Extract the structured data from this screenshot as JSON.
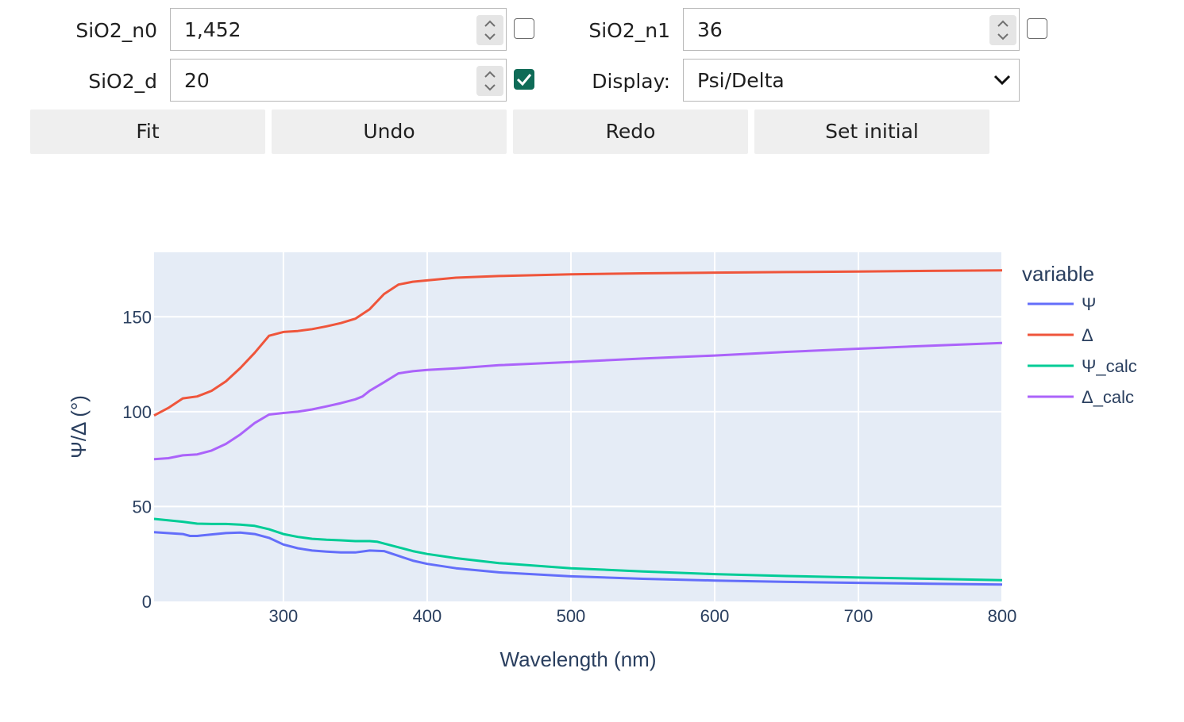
{
  "controls": {
    "sio2_n0": {
      "label": "SiO2_n0",
      "value": "1,452",
      "checked": false
    },
    "sio2_n1": {
      "label": "SiO2_n1",
      "value": "36",
      "checked": false
    },
    "sio2_d": {
      "label": "SiO2_d",
      "value": "20",
      "checked": true
    },
    "display": {
      "label": "Display:",
      "value": "Psi/Delta"
    }
  },
  "buttons": {
    "fit": "Fit",
    "undo": "Undo",
    "redo": "Redo",
    "set_initial": "Set initial"
  },
  "chart_data": {
    "type": "line",
    "xlabel": "Wavelength (nm)",
    "ylabel": "Ψ/Δ (°)",
    "xlim": [
      210,
      800
    ],
    "ylim": [
      0,
      184
    ],
    "xticks": [
      300,
      400,
      500,
      600,
      700,
      800
    ],
    "yticks": [
      0,
      50,
      100,
      150
    ],
    "grid": true,
    "legend_title": "variable",
    "legend_position": "right",
    "series": [
      {
        "name": "Ψ",
        "color": "#636efa",
        "x": [
          210,
          230,
          235,
          240,
          250,
          260,
          270,
          280,
          290,
          300,
          310,
          320,
          330,
          340,
          350,
          360,
          370,
          380,
          390,
          400,
          420,
          450,
          500,
          550,
          600,
          650,
          700,
          750,
          800
        ],
        "y": [
          36.5,
          35.5,
          34.5,
          34.5,
          35.3,
          36,
          36.3,
          35.5,
          33.5,
          30,
          28,
          26.8,
          26.2,
          25.8,
          25.8,
          26.8,
          26.5,
          24,
          21.5,
          19.8,
          17.5,
          15.3,
          13.2,
          11.9,
          11,
          10.3,
          9.8,
          9.3,
          8.9
        ]
      },
      {
        "name": "Δ",
        "color": "#ef553b",
        "x": [
          210,
          220,
          230,
          240,
          250,
          260,
          270,
          280,
          290,
          300,
          310,
          320,
          330,
          340,
          350,
          360,
          370,
          380,
          390,
          400,
          420,
          450,
          500,
          550,
          600,
          650,
          700,
          750,
          800
        ],
        "y": [
          98,
          102,
          107,
          108,
          111,
          116,
          123,
          131,
          140,
          142,
          142.5,
          143.5,
          145,
          146.7,
          149,
          154,
          162,
          167,
          168.5,
          169.2,
          170.6,
          171.5,
          172.4,
          172.9,
          173.3,
          173.6,
          173.9,
          174.2,
          174.5
        ]
      },
      {
        "name": "Ψ_calc",
        "color": "#00cc96",
        "x": [
          210,
          230,
          240,
          250,
          260,
          270,
          280,
          290,
          300,
          310,
          320,
          330,
          340,
          350,
          360,
          365,
          370,
          380,
          390,
          400,
          420,
          450,
          500,
          550,
          600,
          650,
          700,
          750,
          800
        ],
        "y": [
          43.5,
          42,
          41,
          40.8,
          40.8,
          40.5,
          39.8,
          38,
          35.5,
          34,
          33,
          32.5,
          32.2,
          31.8,
          31.8,
          31.5,
          30.5,
          28.5,
          26.5,
          25,
          22.8,
          20.2,
          17.5,
          15.8,
          14.4,
          13.4,
          12.6,
          11.9,
          11.2
        ]
      },
      {
        "name": "Δ_calc",
        "color": "#ab63fa",
        "x": [
          210,
          220,
          230,
          240,
          250,
          260,
          270,
          280,
          290,
          300,
          310,
          320,
          330,
          340,
          350,
          355,
          360,
          370,
          380,
          390,
          400,
          420,
          450,
          500,
          550,
          600,
          650,
          700,
          750,
          800
        ],
        "y": [
          75,
          75.5,
          77,
          77.5,
          79.5,
          83,
          88,
          94,
          98.5,
          99.3,
          100,
          101.2,
          102.8,
          104.5,
          106.5,
          108,
          111,
          115.5,
          120.2,
          121.3,
          122,
          122.8,
          124.5,
          126.2,
          128,
          129.6,
          131.5,
          133.2,
          134.8,
          136.2
        ]
      }
    ]
  }
}
